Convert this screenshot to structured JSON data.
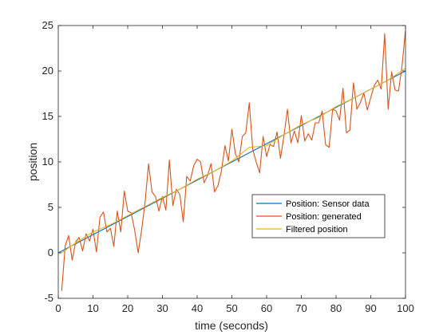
{
  "chart_data": {
    "type": "line",
    "title": "",
    "xlabel": "time (seconds)",
    "ylabel": "position",
    "xlim": [
      0,
      100
    ],
    "ylim": [
      -5,
      25
    ],
    "xticks": [
      0,
      10,
      20,
      30,
      40,
      50,
      60,
      70,
      80,
      90,
      100
    ],
    "yticks": [
      -5,
      0,
      5,
      10,
      15,
      20,
      25
    ],
    "grid": false,
    "legend_placement": "lower-right",
    "series": [
      {
        "name": "Position: Sensor data",
        "color": "#0072BD",
        "x": [
          0,
          100
        ],
        "y": [
          0,
          20
        ]
      },
      {
        "name": "Position: generated",
        "color": "#D95319",
        "x": [
          1,
          2,
          3,
          4,
          5,
          6,
          7,
          8,
          9,
          10,
          11,
          12,
          13,
          14,
          15,
          16,
          17,
          18,
          19,
          20,
          21,
          22,
          23,
          24,
          25,
          26,
          27,
          28,
          29,
          30,
          31,
          32,
          33,
          34,
          35,
          36,
          37,
          38,
          39,
          40,
          41,
          42,
          43,
          44,
          45,
          46,
          47,
          48,
          49,
          50,
          51,
          52,
          53,
          54,
          55,
          56,
          57,
          58,
          59,
          60,
          61,
          62,
          63,
          64,
          65,
          66,
          67,
          68,
          69,
          70,
          71,
          72,
          73,
          74,
          75,
          76,
          77,
          78,
          79,
          80,
          81,
          82,
          83,
          84,
          85,
          86,
          87,
          88,
          89,
          90,
          91,
          92,
          93,
          94,
          95,
          96,
          97,
          98,
          99,
          100
        ],
        "y": [
          -4.2,
          0.8,
          1.9,
          -0.8,
          1.2,
          1.7,
          0.2,
          2.1,
          1.3,
          2.6,
          0.1,
          3.9,
          4.5,
          2.3,
          2.7,
          0.7,
          4.6,
          2.3,
          6.8,
          4.6,
          4.4,
          2.5,
          0.0,
          2.5,
          5.6,
          9.8,
          6.7,
          6.2,
          4.6,
          6.2,
          4.7,
          10.2,
          5.2,
          7.0,
          6.4,
          3.4,
          8.4,
          7.9,
          9.6,
          10.3,
          10.0,
          7.7,
          8.5,
          9.8,
          6.7,
          7.4,
          9.0,
          11.8,
          10.1,
          13.6,
          10.9,
          10.0,
          12.8,
          13.2,
          16.5,
          11.4,
          10.0,
          8.8,
          12.8,
          10.6,
          11.9,
          11.7,
          13.3,
          10.4,
          12.9,
          15.8,
          12.1,
          13.4,
          12.1,
          15.1,
          12.3,
          13.1,
          12.4,
          14.3,
          14.3,
          15.6,
          11.9,
          11.6,
          15.8,
          15.6,
          14.6,
          18.1,
          13.2,
          13.5,
          18.7,
          15.8,
          16.5,
          17.6,
          15.7,
          17.1,
          18.4,
          19.0,
          18.0,
          24.1,
          15.8,
          19.9,
          17.9,
          17.8,
          20.5,
          24.5
        ]
      },
      {
        "name": "Filtered position",
        "color": "#EDB120",
        "x": [
          1,
          5,
          10,
          15,
          20,
          25,
          30,
          35,
          40,
          45,
          50,
          55,
          60,
          65,
          70,
          75,
          80,
          85,
          90,
          95,
          100
        ],
        "y": [
          0.0,
          1.1,
          2.3,
          3.1,
          4.1,
          5.1,
          6.1,
          7.0,
          8.1,
          9.0,
          10.1,
          11.6,
          11.8,
          13.0,
          14.1,
          14.9,
          16.1,
          17.0,
          18.0,
          19.0,
          20.3
        ]
      }
    ]
  }
}
